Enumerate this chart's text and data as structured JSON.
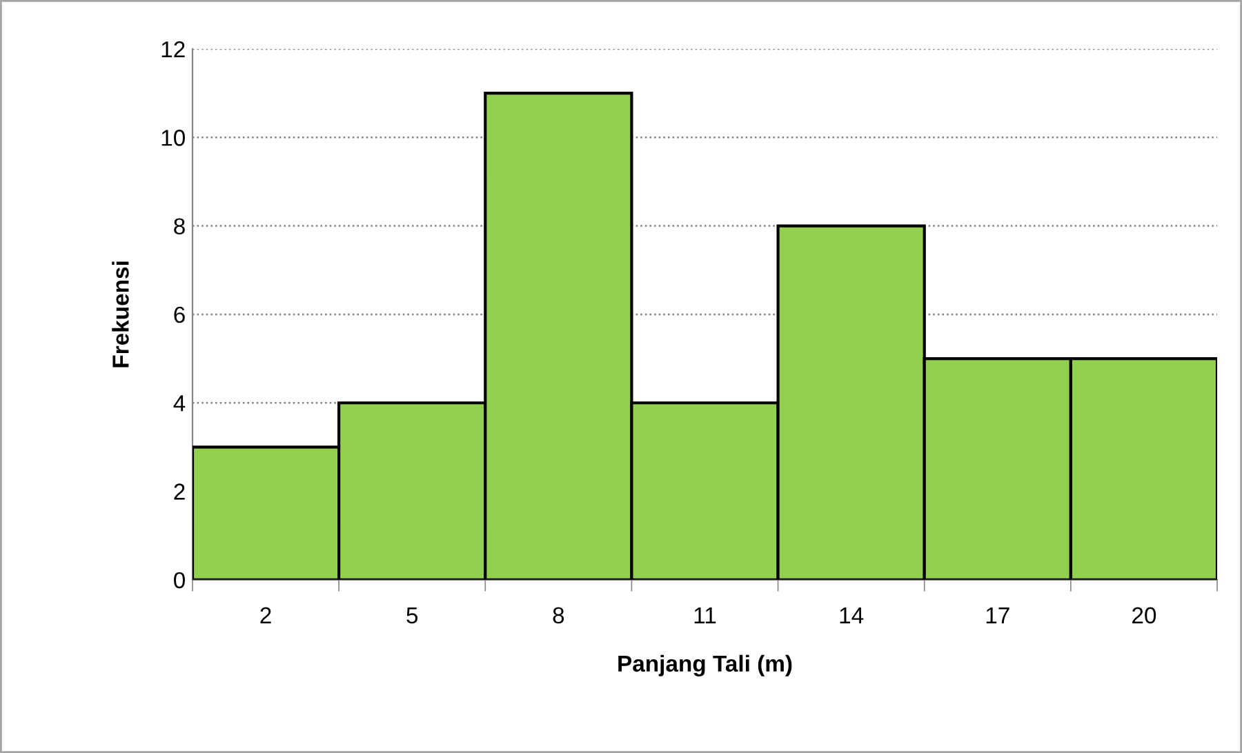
{
  "chart_data": {
    "type": "bar",
    "xlabel": "Panjang Tali (m)",
    "ylabel": "Frekuensi",
    "categories": [
      "2",
      "5",
      "8",
      "11",
      "14",
      "17",
      "20"
    ],
    "values": [
      3,
      4,
      11,
      4,
      8,
      5,
      5
    ],
    "color": "#92d050",
    "ylim": [
      0,
      12
    ],
    "yticks": [
      0,
      2,
      4,
      6,
      8,
      10,
      12
    ],
    "grid": "y"
  }
}
